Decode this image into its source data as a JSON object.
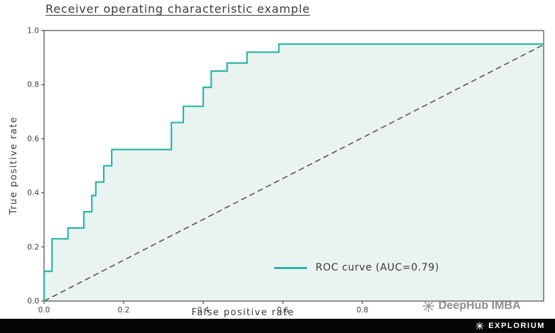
{
  "chart_data": {
    "type": "line",
    "title": "Receiver operating characteristic example",
    "xlabel": "False positive rate",
    "ylabel": "True positive rate",
    "x_ticks": [
      0.0,
      0.2,
      0.4,
      0.6,
      0.8
    ],
    "y_ticks": [
      0.0,
      0.2,
      0.4,
      0.6,
      0.8,
      1.0
    ],
    "xlim": [
      0,
      1.26
    ],
    "ylim": [
      0,
      1.0
    ],
    "auc": 0.79,
    "legend": {
      "label": "ROC curve (AUC=0.79)",
      "position": "center-right"
    },
    "roc_curve": {
      "name": "ROC curve",
      "color": "#2bb6a9",
      "fill_color": "#e9f4f1",
      "points": [
        [
          0.0,
          0.0
        ],
        [
          0.0,
          0.11
        ],
        [
          0.02,
          0.11
        ],
        [
          0.02,
          0.23
        ],
        [
          0.06,
          0.23
        ],
        [
          0.06,
          0.27
        ],
        [
          0.1,
          0.27
        ],
        [
          0.1,
          0.33
        ],
        [
          0.12,
          0.33
        ],
        [
          0.12,
          0.39
        ],
        [
          0.13,
          0.39
        ],
        [
          0.13,
          0.44
        ],
        [
          0.15,
          0.44
        ],
        [
          0.15,
          0.5
        ],
        [
          0.17,
          0.5
        ],
        [
          0.17,
          0.56
        ],
        [
          0.32,
          0.56
        ],
        [
          0.32,
          0.66
        ],
        [
          0.35,
          0.66
        ],
        [
          0.35,
          0.72
        ],
        [
          0.4,
          0.72
        ],
        [
          0.4,
          0.79
        ],
        [
          0.42,
          0.79
        ],
        [
          0.42,
          0.85
        ],
        [
          0.46,
          0.85
        ],
        [
          0.46,
          0.88
        ],
        [
          0.51,
          0.88
        ],
        [
          0.51,
          0.92
        ],
        [
          0.59,
          0.92
        ],
        [
          0.59,
          0.95
        ],
        [
          1.26,
          0.95
        ]
      ]
    },
    "chance_line": {
      "style": "dashed",
      "color": "#4c4c4c",
      "end_tpr": 0.945
    },
    "axis_color": "#2a2a2a",
    "tick_label_color": "#3f3f3f"
  },
  "watermark": {
    "text": "DeepHub IMBA"
  },
  "footer": {
    "brand": "EXPLORIUM"
  }
}
